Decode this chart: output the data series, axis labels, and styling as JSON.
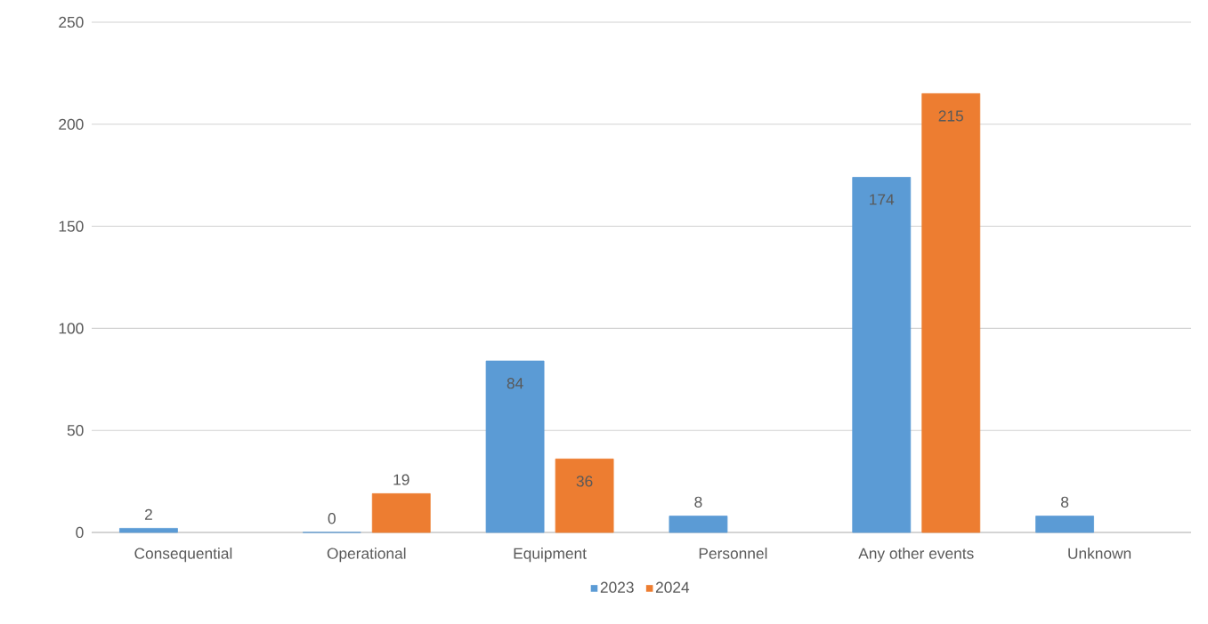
{
  "chart_data": {
    "type": "bar",
    "categories": [
      "Consequential",
      "Operational",
      "Equipment",
      "Personnel",
      "Any other events",
      "Unknown"
    ],
    "series": [
      {
        "name": "2023",
        "color": "#5b9bd5",
        "values": [
          2,
          0,
          84,
          8,
          174,
          8
        ]
      },
      {
        "name": "2024",
        "color": "#ed7d31",
        "values": [
          null,
          19,
          36,
          null,
          215,
          null
        ]
      }
    ],
    "ylim": [
      0,
      250
    ],
    "yticks": [
      0,
      50,
      100,
      150,
      200,
      250
    ],
    "grid": "y",
    "legend": "bottom",
    "data_labels": true
  }
}
